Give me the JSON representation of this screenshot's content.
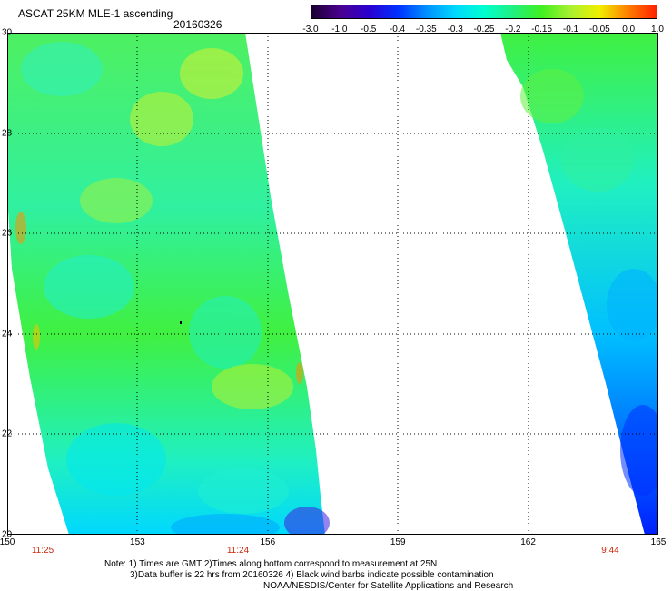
{
  "header": {
    "title": "ASCAT 25KM MLE-1 ascending",
    "date": "20160326"
  },
  "colorbar": {
    "labels": [
      "-3.0",
      "-1.0",
      "-0.5",
      "-0.4",
      "-0.35",
      "-0.3",
      "-0.25",
      "-0.2",
      "-0.15",
      "-0.1",
      "-0.05",
      "0.0",
      "1.0"
    ],
    "colors": [
      "#1a0030",
      "#4a0090",
      "#2a00d0",
      "#0030ff",
      "#0090ff",
      "#00d8ff",
      "#00ffd0",
      "#20f080",
      "#40f020",
      "#a8f030",
      "#f0f000",
      "#ff8000",
      "#ff2000"
    ]
  },
  "axes": {
    "lat_labels": [
      "30",
      "28",
      "26",
      "24",
      "22",
      "20"
    ],
    "lon_labels": [
      "150",
      "153",
      "156",
      "159",
      "162",
      "165"
    ],
    "time_labels": [
      "11:25",
      "11:24",
      "9:44"
    ]
  },
  "notes": {
    "line1": "Note: 1) Times are GMT 2)Times along bottom correspond to measurement at 25N",
    "line2": "3)Data buffer is 22 hrs from 20160326 4) Black wind barbs indicate possible contamination",
    "line3": "NOAA/NESDIS/Center for Satellite Applications and Research"
  }
}
